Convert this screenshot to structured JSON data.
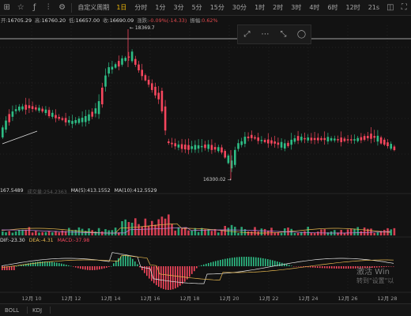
{
  "toolbar": {
    "icons": [
      {
        "name": "grid-icon",
        "glyph": "⊞"
      },
      {
        "name": "star-icon",
        "glyph": "☆"
      },
      {
        "name": "indicator-icon",
        "glyph": "ƒ"
      },
      {
        "name": "chart-type-icon",
        "glyph": "⫶"
      },
      {
        "name": "settings-icon",
        "glyph": "⚙"
      }
    ],
    "intervals": [
      {
        "label": "1日",
        "active": true
      },
      {
        "label": "分时",
        "active": false
      },
      {
        "label": "1分",
        "active": false
      },
      {
        "label": "3分",
        "active": false
      },
      {
        "label": "5分",
        "active": false
      },
      {
        "label": "15分",
        "active": false
      },
      {
        "label": "30分",
        "active": false
      },
      {
        "label": "1时",
        "active": false
      },
      {
        "label": "2时",
        "active": false
      },
      {
        "label": "3时",
        "active": false
      },
      {
        "label": "4时",
        "active": false
      },
      {
        "label": "6时",
        "active": false
      },
      {
        "label": "12时",
        "active": false
      },
      {
        "label": "21s",
        "active": false
      }
    ],
    "custom_label": "自定义周期",
    "right_icons": [
      {
        "name": "camera-icon",
        "glyph": "◫"
      },
      {
        "name": "fullscreen-icon",
        "glyph": "⛶"
      }
    ]
  },
  "infoline": {
    "open_label": "开:",
    "open": "16705.29",
    "high_label": "高:",
    "high": "16760.20",
    "low_label": "低:",
    "low": "16657.00",
    "close_label": "收:",
    "close": "16690.09",
    "change_label": "涨跌:",
    "change": "-0.09%(-14.33)",
    "amp_label": "振幅:",
    "amp": "0.62%"
  },
  "price_labels": {
    "high": "← 18369.7",
    "low": "16300.02 →"
  },
  "volume": {
    "vol": "167.5489",
    "vol_note": "成交量:254.2363",
    "ma5": "MA(5):413.1552",
    "ma10": "MA(10):412.5529"
  },
  "macd": {
    "dif": "DIF:-23.30",
    "dea": "DEA:-4.31",
    "macd": "MACD:-37.98"
  },
  "colors": {
    "up": "#2ebd85",
    "down": "#f6465d",
    "dif": "#e6e6e6",
    "dea": "#e7b84f",
    "ma10": "#c084e0"
  },
  "x_axis": [
    "12月 10",
    "12月 12",
    "12月 14",
    "12月 16",
    "12月 18",
    "12月 20",
    "12月 22",
    "12月 24",
    "12月 26",
    "12月 28"
  ],
  "watermark": {
    "line1": "激活 Win",
    "line2": "转到\"设置\"以"
  },
  "bottom": {
    "items": [
      "BOLL",
      "KDJ"
    ]
  }
}
